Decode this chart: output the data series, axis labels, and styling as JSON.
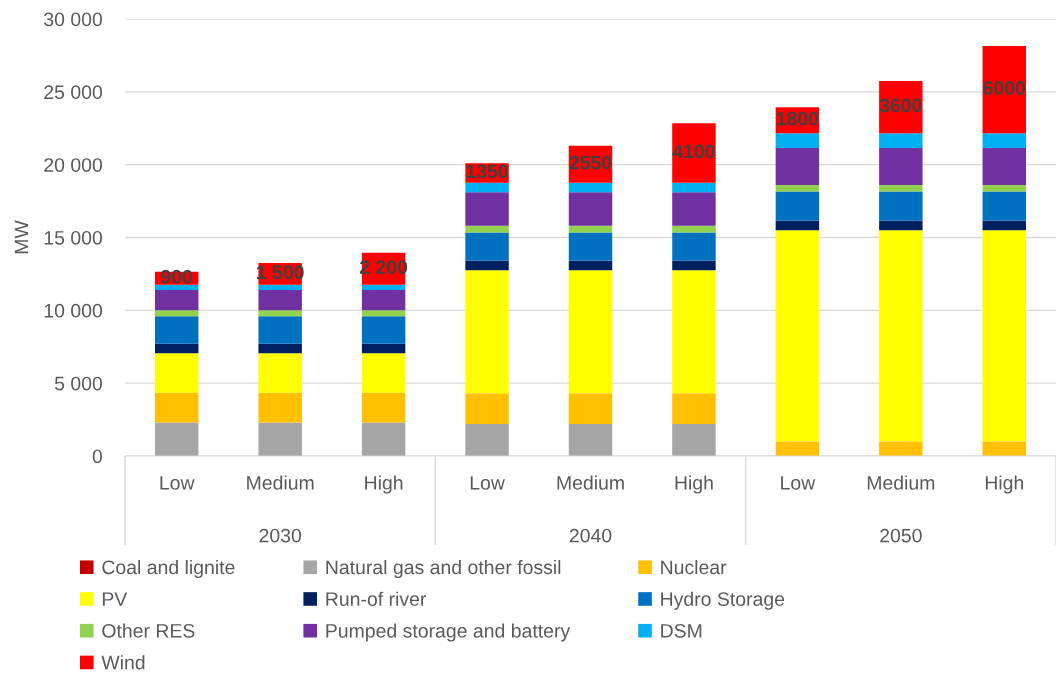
{
  "chart_data": {
    "type": "bar",
    "stacked": true,
    "ylabel": "MW",
    "categories": [
      "Low",
      "Medium",
      "High",
      "Low",
      "Medium",
      "High",
      "Low",
      "Medium",
      "High"
    ],
    "annotations": [
      "2030",
      "2040",
      "2050"
    ],
    "ylim": [
      0,
      30000
    ],
    "yticks": [
      0,
      {
        "value": 5000,
        "label": "5 000"
      },
      {
        "value": 10000,
        "label": "10 000"
      },
      {
        "value": 15000,
        "label": "15 000"
      },
      {
        "value": 20000,
        "label": "20 000"
      },
      {
        "value": 25000,
        "label": "25 000"
      },
      {
        "value": 30000,
        "label": "30 000"
      }
    ],
    "grid": "y",
    "legend": "bottom",
    "series": [
      {
        "name": "Coal and lignite",
        "color": "#c00000",
        "values": [
          0,
          0,
          0,
          0,
          0,
          0,
          0,
          0,
          0
        ]
      },
      {
        "name": "Natural gas and other fossil",
        "color": "#a5a5a5",
        "values": [
          2300,
          2300,
          2300,
          2200,
          2200,
          2200,
          0,
          0,
          0
        ]
      },
      {
        "name": "Nuclear",
        "color": "#ffc000",
        "values": [
          2050,
          2050,
          2050,
          2100,
          2100,
          2100,
          1000,
          1000,
          1000
        ]
      },
      {
        "name": "PV",
        "color": "#ffff00",
        "values": [
          2700,
          2700,
          2700,
          8450,
          8450,
          8450,
          14500,
          14500,
          14500
        ]
      },
      {
        "name": "Run-of river",
        "color": "#002060",
        "values": [
          650,
          650,
          650,
          650,
          650,
          650,
          650,
          650,
          650
        ]
      },
      {
        "name": "Hydro Storage",
        "color": "#0070c0",
        "values": [
          1900,
          1900,
          1900,
          1950,
          1950,
          1950,
          2000,
          2000,
          2000
        ]
      },
      {
        "name": "Other RES",
        "color": "#92d050",
        "values": [
          400,
          400,
          400,
          450,
          450,
          450,
          450,
          450,
          450
        ]
      },
      {
        "name": "Pumped storage and battery",
        "color": "#7030a0",
        "values": [
          1400,
          1400,
          1400,
          2300,
          2300,
          2300,
          2550,
          2550,
          2550
        ]
      },
      {
        "name": "DSM",
        "color": "#00b0f0",
        "values": [
          350,
          350,
          350,
          650,
          650,
          650,
          1000,
          1000,
          1000
        ]
      },
      {
        "name": "Wind",
        "color": "#ff0000",
        "values": [
          900,
          1500,
          2200,
          1350,
          2550,
          4100,
          1800,
          3600,
          6000
        ],
        "value_labels": [
          "900",
          "1 500",
          "2 200",
          "1350",
          "2550",
          "4100",
          "1800",
          "3600",
          "6000"
        ]
      }
    ]
  }
}
